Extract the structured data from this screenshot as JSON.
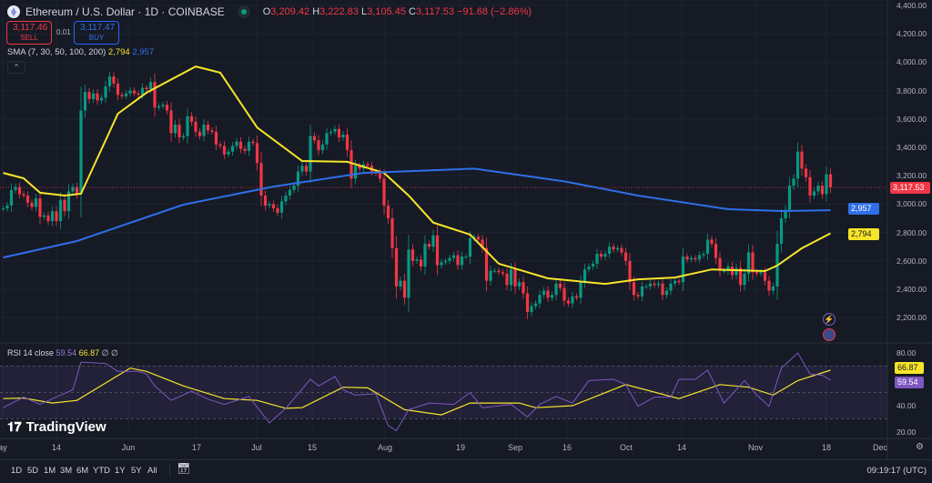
{
  "header": {
    "symbol": "Ethereum / U.S. Dollar · 1D · COINBASE",
    "o_label": "O",
    "o": "3,209.42",
    "h_label": "H",
    "h": "3,222.83",
    "l_label": "L",
    "l": "3,105.45",
    "c_label": "C",
    "c": "3,117.53",
    "change": "−91.68 (−2.86%)"
  },
  "trade": {
    "sell_price": "3,117.46",
    "sell_label": "SELL",
    "spread": "0.01",
    "buy_price": "3,117.47",
    "buy_label": "BUY"
  },
  "sma": {
    "label": "SMA (7, 30, 50, 100, 200)",
    "v1": "2,794",
    "v2": "2,957"
  },
  "rsi": {
    "label": "RSI 14 close",
    "value": "59.54",
    "ma": "66.87",
    "extra": "∅ ∅"
  },
  "price_axis": [
    "4,400.00",
    "4,200.00",
    "4,000.00",
    "3,800.00",
    "3,600.00",
    "3,400.00",
    "3,200.00",
    "3,000.00",
    "2,800.00",
    "2,600.00",
    "2,400.00",
    "2,200.00"
  ],
  "price_tags": {
    "last": "3,117.53",
    "sma_blue": "2,957",
    "sma_yellow": "2,794"
  },
  "rsi_axis": [
    "80.00",
    "40.00",
    "20.00"
  ],
  "rsi_tags": {
    "ma": "66.87",
    "rsi": "59.54"
  },
  "time_axis": [
    "ay",
    "14",
    "Jun",
    "17",
    "Jul",
    "15",
    "Aug",
    "19",
    "Sep",
    "16",
    "Oct",
    "14",
    "Nov",
    "18",
    "Dec"
  ],
  "ranges": [
    "1D",
    "5D",
    "1M",
    "3M",
    "6M",
    "YTD",
    "1Y",
    "5Y",
    "All"
  ],
  "clock": "09:19:17 (UTC)",
  "logo": "TradingView",
  "colors": {
    "up": "#089981",
    "down": "#f23645",
    "sma_yellow": "#f7e52a",
    "sma_blue": "#2f6fe8",
    "rsi": "#7e57c2",
    "bg": "#161a25"
  },
  "icons": [
    "eth-coin-icon",
    "market-open-icon",
    "collapse-chevron-icon",
    "lightning-icon",
    "us-flag-icon",
    "calendar-icon",
    "settings-gear-icon"
  ],
  "chart_data": {
    "type": "candlestick",
    "first_date": "05-01",
    "last_date": "11-19",
    "ylim": [
      2200,
      4400
    ],
    "closes": [
      2970,
      2990,
      3100,
      3120,
      3070,
      3060,
      3010,
      2980,
      3040,
      2910,
      2920,
      2880,
      2950,
      2880,
      3030,
      2950,
      3090,
      3120,
      3070,
      3660,
      3790,
      3740,
      3780,
      3730,
      3750,
      3830,
      3900,
      3850,
      3770,
      3760,
      3780,
      3800,
      3780,
      3770,
      3820,
      3810,
      3860,
      3680,
      3690,
      3700,
      3660,
      3500,
      3560,
      3470,
      3480,
      3620,
      3580,
      3510,
      3480,
      3560,
      3520,
      3510,
      3420,
      3410,
      3350,
      3370,
      3410,
      3440,
      3390,
      3375,
      3440,
      3430,
      3290,
      3060,
      2990,
      3000,
      2970,
      2940,
      3020,
      3060,
      3100,
      3130,
      3230,
      3270,
      3230,
      3480,
      3450,
      3380,
      3420,
      3500,
      3510,
      3530,
      3470,
      3490,
      3380,
      3180,
      3270,
      3250,
      3280,
      3270,
      3230,
      3220,
      3180,
      2990,
      2900,
      2690,
      2420,
      2460,
      2340,
      2680,
      2600,
      2610,
      2560,
      2720,
      2700,
      2780,
      2570,
      2590,
      2600,
      2620,
      2640,
      2570,
      2630,
      2630,
      2760,
      2770,
      2750,
      2690,
      2460,
      2530,
      2530,
      2520,
      2510,
      2430,
      2540,
      2420,
      2450,
      2370,
      2240,
      2280,
      2300,
      2360,
      2390,
      2340,
      2360,
      2440,
      2410,
      2320,
      2300,
      2350,
      2340,
      2450,
      2540,
      2560,
      2580,
      2650,
      2630,
      2650,
      2700,
      2680,
      2690,
      2660,
      2600,
      2450,
      2360,
      2350,
      2420,
      2420,
      2440,
      2430,
      2440,
      2360,
      2390,
      2440,
      2460,
      2450,
      2630,
      2610,
      2620,
      2610,
      2640,
      2650,
      2750,
      2720,
      2620,
      2530,
      2530,
      2560,
      2500,
      2550,
      2430,
      2510,
      2660,
      2520,
      2510,
      2520,
      2460,
      2390,
      2420,
      2720,
      2900,
      2960,
      3130,
      3180,
      3370,
      3250,
      3190,
      3060,
      3090,
      3130,
      3070,
      3210,
      3117.53
    ],
    "sma_yellow": [
      [
        "05-01",
        3220
      ],
      [
        "05-06",
        3182
      ],
      [
        "05-10",
        3080
      ],
      [
        "05-16",
        3060
      ],
      [
        "05-20",
        3073
      ],
      [
        "05-29",
        3637
      ],
      [
        "06-05",
        3785
      ],
      [
        "06-17",
        3970
      ],
      [
        "06-23",
        3926
      ],
      [
        "07-02",
        3540
      ],
      [
        "07-13",
        3304
      ],
      [
        "07-24",
        3298
      ],
      [
        "08-02",
        3220
      ],
      [
        "08-08",
        3060
      ],
      [
        "08-14",
        2870
      ],
      [
        "08-23",
        2785
      ],
      [
        "08-30",
        2580
      ],
      [
        "09-11",
        2477
      ],
      [
        "09-25",
        2438
      ],
      [
        "10-03",
        2470
      ],
      [
        "10-12",
        2483
      ],
      [
        "10-21",
        2540
      ],
      [
        "11-03",
        2528
      ],
      [
        "11-06",
        2567
      ],
      [
        "11-12",
        2689
      ],
      [
        "11-19",
        2794
      ]
    ],
    "sma_blue": [
      [
        "05-01",
        2624
      ],
      [
        "05-19",
        2740
      ],
      [
        "06-14",
        2996
      ],
      [
        "07-06",
        3124
      ],
      [
        "07-28",
        3220
      ],
      [
        "08-24",
        3250
      ],
      [
        "09-15",
        3160
      ],
      [
        "10-03",
        3060
      ],
      [
        "10-25",
        2964
      ],
      [
        "11-07",
        2951
      ],
      [
        "11-19",
        2957
      ]
    ],
    "rsi_series": [
      [
        "05-01",
        38.5
      ],
      [
        "05-06",
        46.5
      ],
      [
        "05-10",
        41
      ],
      [
        "05-15",
        48
      ],
      [
        "05-18",
        52
      ],
      [
        "05-20",
        73
      ],
      [
        "05-26",
        72
      ],
      [
        "05-29",
        66
      ],
      [
        "06-03",
        66
      ],
      [
        "06-05",
        64
      ],
      [
        "06-07",
        55
      ],
      [
        "06-11",
        44
      ],
      [
        "06-16",
        51
      ],
      [
        "06-20",
        45
      ],
      [
        "06-24",
        41
      ],
      [
        "06-30",
        47
      ],
      [
        "07-05",
        27
      ],
      [
        "07-09",
        38
      ],
      [
        "07-15",
        60
      ],
      [
        "07-17",
        55
      ],
      [
        "07-21",
        62
      ],
      [
        "07-23",
        52
      ],
      [
        "07-26",
        48
      ],
      [
        "07-31",
        49
      ],
      [
        "08-03",
        25
      ],
      [
        "08-05",
        21
      ],
      [
        "08-08",
        37
      ],
      [
        "08-13",
        42
      ],
      [
        "08-19",
        41
      ],
      [
        "08-23",
        50
      ],
      [
        "08-26",
        38.5
      ],
      [
        "09-02",
        41
      ],
      [
        "09-06",
        31.5
      ],
      [
        "09-09",
        41
      ],
      [
        "09-13",
        47
      ],
      [
        "09-17",
        42
      ],
      [
        "09-21",
        59
      ],
      [
        "09-27",
        60
      ],
      [
        "09-30",
        56
      ],
      [
        "10-03",
        39.6
      ],
      [
        "10-07",
        46.5
      ],
      [
        "10-11",
        46.5
      ],
      [
        "10-13",
        60
      ],
      [
        "10-17",
        60
      ],
      [
        "10-20",
        67
      ],
      [
        "10-24",
        42
      ],
      [
        "10-29",
        59
      ],
      [
        "11-01",
        48
      ],
      [
        "11-04",
        39.6
      ],
      [
        "11-07",
        68.5
      ],
      [
        "11-11",
        80
      ],
      [
        "11-14",
        64
      ],
      [
        "11-17",
        63
      ],
      [
        "11-19",
        59.54
      ]
    ],
    "rsi_ma": [
      [
        "05-01",
        45.4
      ],
      [
        "05-06",
        45.8
      ],
      [
        "05-13",
        42
      ],
      [
        "05-19",
        44
      ],
      [
        "06-01",
        68.5
      ],
      [
        "06-05",
        66
      ],
      [
        "06-14",
        55
      ],
      [
        "06-24",
        45.4
      ],
      [
        "07-02",
        44
      ],
      [
        "07-09",
        38
      ],
      [
        "07-13",
        38.5
      ],
      [
        "07-23",
        54
      ],
      [
        "07-29",
        53.5
      ],
      [
        "08-07",
        37
      ],
      [
        "08-16",
        33
      ],
      [
        "08-23",
        42
      ],
      [
        "09-04",
        42
      ],
      [
        "09-08",
        38.5
      ],
      [
        "09-17",
        40
      ],
      [
        "09-30",
        56
      ],
      [
        "10-13",
        45.4
      ],
      [
        "10-23",
        56
      ],
      [
        "10-30",
        54
      ],
      [
        "11-05",
        48
      ],
      [
        "11-11",
        59
      ],
      [
        "11-19",
        66.87
      ]
    ],
    "rsi_levels": [
      70,
      50,
      30
    ],
    "rsi_ylim": [
      20,
      80
    ]
  }
}
